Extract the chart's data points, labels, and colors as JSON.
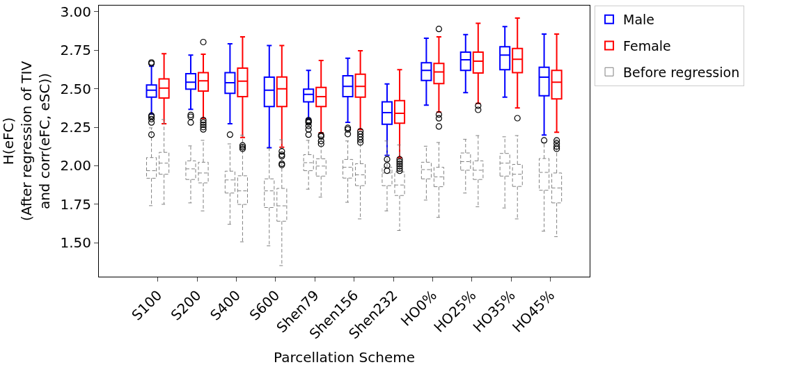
{
  "chart_data": {
    "type": "box",
    "xlabel": "Parcellation Scheme",
    "ylabel": "H(eFC)\n(After regression of TIV\nand corr(eFC, eSC))",
    "categories": [
      "S100",
      "S200",
      "S400",
      "S600",
      "Shen79",
      "Shen156",
      "Shen232",
      "HO0%",
      "HO25%",
      "HO35%",
      "HO45%"
    ],
    "ylim": [
      1.28,
      3.04
    ],
    "yticks": [
      {
        "value": 1.5,
        "label": "1.50"
      },
      {
        "value": 1.75,
        "label": "1.75"
      },
      {
        "value": 2.0,
        "label": "2.00"
      },
      {
        "value": 2.25,
        "label": "2.25"
      },
      {
        "value": 2.5,
        "label": "2.50"
      },
      {
        "value": 2.75,
        "label": "2.75"
      },
      {
        "value": 3.0,
        "label": "3.00"
      }
    ],
    "legend": "top right",
    "marker": "circle",
    "series": [
      {
        "name": "Male",
        "color": "#0000ff",
        "line_style": "solid",
        "boxes": [
          {
            "low": 2.336,
            "q1": 2.446,
            "median": 2.491,
            "q3": 2.524,
            "high": 2.646,
            "outliers": [
              2.671,
              2.664,
              2.326,
              2.318,
              2.303,
              2.281,
              2.202
            ]
          },
          {
            "low": 2.366,
            "q1": 2.497,
            "median": 2.542,
            "q3": 2.598,
            "high": 2.718,
            "outliers": [
              2.33,
              2.318,
              2.281
            ]
          },
          {
            "low": 2.273,
            "q1": 2.47,
            "median": 2.539,
            "q3": 2.604,
            "high": 2.792,
            "outliers": [
              2.202
            ]
          },
          {
            "low": 2.117,
            "q1": 2.385,
            "median": 2.491,
            "q3": 2.575,
            "high": 2.78
          },
          {
            "low": 2.306,
            "q1": 2.415,
            "median": 2.463,
            "q3": 2.497,
            "high": 2.619,
            "outliers": [
              2.296,
              2.288,
              2.281,
              2.259,
              2.236,
              2.202
            ]
          },
          {
            "low": 2.282,
            "q1": 2.449,
            "median": 2.515,
            "q3": 2.584,
            "high": 2.698,
            "outliers": [
              2.246,
              2.236,
              2.206
            ]
          },
          {
            "low": 2.068,
            "q1": 2.269,
            "median": 2.345,
            "q3": 2.415,
            "high": 2.531,
            "outliers": [
              2.042,
              2.002,
              1.968
            ]
          },
          {
            "low": 2.393,
            "q1": 2.554,
            "median": 2.619,
            "q3": 2.669,
            "high": 2.828
          },
          {
            "low": 2.475,
            "q1": 2.619,
            "median": 2.688,
            "q3": 2.738,
            "high": 2.852
          },
          {
            "low": 2.445,
            "q1": 2.624,
            "median": 2.718,
            "q3": 2.773,
            "high": 2.904
          },
          {
            "low": 2.199,
            "q1": 2.455,
            "median": 2.575,
            "q3": 2.639,
            "high": 2.855,
            "outliers": [
              2.165
            ]
          }
        ]
      },
      {
        "name": "Female",
        "color": "#ff0000",
        "line_style": "solid",
        "boxes": [
          {
            "low": 2.273,
            "q1": 2.44,
            "median": 2.504,
            "q3": 2.564,
            "high": 2.727
          },
          {
            "low": 2.308,
            "q1": 2.485,
            "median": 2.552,
            "q3": 2.604,
            "high": 2.724,
            "outliers": [
              2.803,
              2.296,
              2.281,
              2.266,
              2.251,
              2.236
            ]
          },
          {
            "low": 2.184,
            "q1": 2.449,
            "median": 2.549,
            "q3": 2.634,
            "high": 2.837,
            "outliers": [
              2.132,
              2.121,
              2.11
            ]
          },
          {
            "low": 2.121,
            "q1": 2.385,
            "median": 2.5,
            "q3": 2.576,
            "high": 2.78,
            "outliers": [
              2.094,
              2.072,
              2.062,
              2.013,
              2.005
            ]
          },
          {
            "low": 2.214,
            "q1": 2.385,
            "median": 2.449,
            "q3": 2.509,
            "high": 2.683,
            "outliers": [
              2.199,
              2.191,
              2.161,
              2.142
            ]
          },
          {
            "low": 2.236,
            "q1": 2.445,
            "median": 2.515,
            "q3": 2.594,
            "high": 2.747,
            "outliers": [
              2.224,
              2.206,
              2.188,
              2.169,
              2.151
            ]
          },
          {
            "low": 2.053,
            "q1": 2.276,
            "median": 2.34,
            "q3": 2.423,
            "high": 2.624,
            "outliers": [
              2.042,
              2.027,
              2.012,
              1.997,
              1.982,
              1.967
            ]
          },
          {
            "low": 2.348,
            "q1": 2.534,
            "median": 2.609,
            "q3": 2.664,
            "high": 2.837,
            "outliers": [
              2.888,
              2.333,
              2.308,
              2.255
            ]
          },
          {
            "low": 2.405,
            "q1": 2.602,
            "median": 2.679,
            "q3": 2.738,
            "high": 2.925,
            "outliers": [
              2.39,
              2.363
            ]
          },
          {
            "low": 2.375,
            "q1": 2.604,
            "median": 2.691,
            "q3": 2.761,
            "high": 2.959,
            "outliers": [
              2.309
            ]
          },
          {
            "low": 2.218,
            "q1": 2.434,
            "median": 2.542,
            "q3": 2.619,
            "high": 2.855,
            "outliers": [
              2.165,
              2.145,
              2.125,
              2.11
            ]
          }
        ]
      },
      {
        "name": "Before regression",
        "color": "#808080",
        "line_style": "dashed",
        "boxes": [
          {
            "low": 1.741,
            "q1": 1.919,
            "median": 1.968,
            "q3": 2.053,
            "high": 2.246
          },
          {
            "low": 1.759,
            "q1": 1.911,
            "median": 1.98,
            "q3": 2.032,
            "high": 2.129
          },
          {
            "low": 1.62,
            "q1": 1.823,
            "median": 1.908,
            "q3": 1.965,
            "high": 2.142
          },
          {
            "low": 1.48,
            "q1": 1.729,
            "median": 1.837,
            "q3": 1.915,
            "high": 2.112
          },
          {
            "low": 1.848,
            "q1": 1.968,
            "median": 2.02,
            "q3": 2.072,
            "high": 2.165
          },
          {
            "low": 1.763,
            "q1": 1.92,
            "median": 1.99,
            "q3": 2.041,
            "high": 2.161
          },
          {
            "low": 1.707,
            "q1": 1.871,
            "median": 1.953,
            "q3": 1.99,
            "high": 2.161
          },
          {
            "low": 1.777,
            "q1": 1.915,
            "median": 1.975,
            "q3": 2.023,
            "high": 2.127
          },
          {
            "low": 1.823,
            "q1": 1.971,
            "median": 2.027,
            "q3": 2.083,
            "high": 2.172
          },
          {
            "low": 1.726,
            "q1": 1.933,
            "median": 2.017,
            "q3": 2.08,
            "high": 2.188
          },
          {
            "low": 1.576,
            "q1": 1.841,
            "median": 1.957,
            "q3": 2.047,
            "high": 2.15
          }
        ]
      },
      {
        "color": "#808080",
        "line_style": "dashed",
        "boxes": [
          {
            "low": 1.75,
            "q1": 1.945,
            "median": 2.017,
            "q3": 2.087,
            "high": 2.3
          },
          {
            "low": 1.707,
            "q1": 1.889,
            "median": 1.953,
            "q3": 2.023,
            "high": 2.165
          },
          {
            "low": 1.506,
            "q1": 1.749,
            "median": 1.837,
            "q3": 1.935,
            "high": 2.199
          },
          {
            "low": 1.352,
            "q1": 1.64,
            "median": 1.74,
            "q3": 1.853,
            "high": 2.169
          },
          {
            "low": 1.797,
            "q1": 1.933,
            "median": 1.998,
            "q3": 2.045,
            "high": 2.191
          },
          {
            "low": 1.655,
            "q1": 1.871,
            "median": 1.941,
            "q3": 2.013,
            "high": 2.16
          },
          {
            "low": 1.58,
            "q1": 1.807,
            "median": 1.875,
            "q3": 1.96,
            "high": 2.135
          },
          {
            "low": 1.665,
            "q1": 1.864,
            "median": 1.928,
            "q3": 1.99,
            "high": 2.151
          },
          {
            "low": 1.734,
            "q1": 1.911,
            "median": 1.971,
            "q3": 2.032,
            "high": 2.196
          },
          {
            "low": 1.655,
            "q1": 1.866,
            "median": 1.945,
            "q3": 2.009,
            "high": 2.196
          },
          {
            "low": 1.54,
            "q1": 1.759,
            "median": 1.856,
            "q3": 1.953,
            "high": 2.17
          }
        ]
      }
    ]
  }
}
